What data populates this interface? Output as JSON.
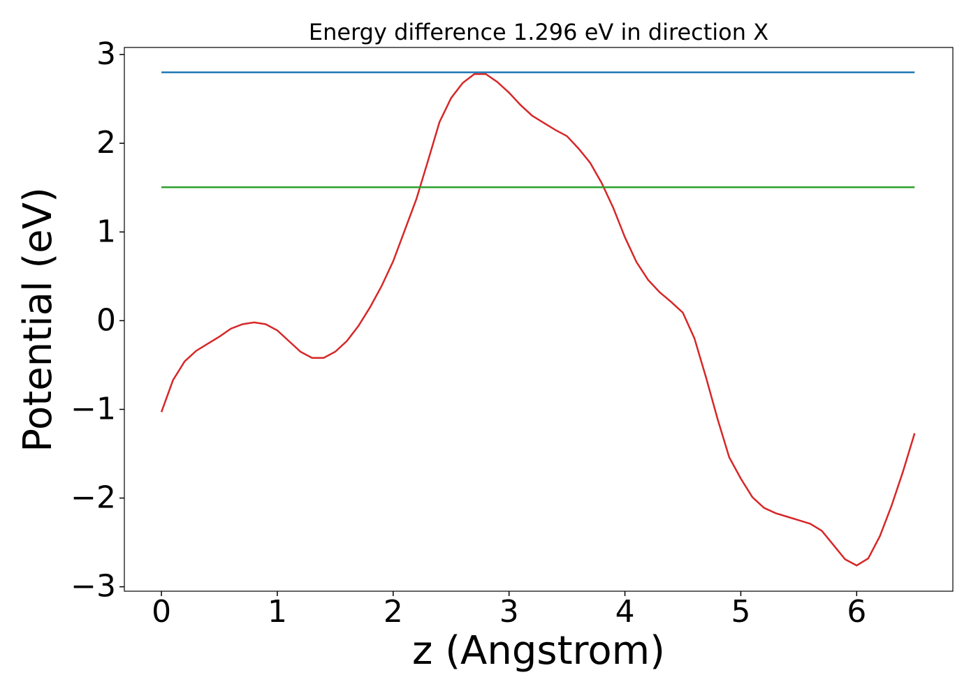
{
  "chart_data": {
    "type": "line",
    "title": "Energy difference 1.296 eV in direction X",
    "xlabel": "z (Angstrom)",
    "ylabel": "Potential (eV)",
    "xlim": [
      -0.32,
      6.83
    ],
    "ylim": [
      -3.05,
      3.08
    ],
    "xticks": [
      0,
      1,
      2,
      3,
      4,
      5,
      6
    ],
    "yticks": [
      {
        "value": -3,
        "label": "−3"
      },
      {
        "value": -2,
        "label": "−2"
      },
      {
        "value": -1,
        "label": "−1"
      },
      0,
      1,
      2,
      3
    ],
    "grid": false,
    "series": [
      {
        "color": "#d62728",
        "x": [
          0,
          0.1,
          0.2,
          0.3,
          0.4,
          0.5,
          0.6,
          0.7,
          0.8,
          0.9,
          1.0,
          1.1,
          1.2,
          1.3,
          1.4,
          1.5,
          1.6,
          1.7,
          1.8,
          1.9,
          2.0,
          2.1,
          2.2,
          2.3,
          2.4,
          2.5,
          2.6,
          2.7,
          2.8,
          2.9,
          3.0,
          3.1,
          3.2,
          3.3,
          3.4,
          3.5,
          3.6,
          3.7,
          3.8,
          3.9,
          4.0,
          4.1,
          4.2,
          4.3,
          4.4,
          4.5,
          4.6,
          4.7,
          4.8,
          4.9,
          5.0,
          5.1,
          5.2,
          5.3,
          5.4,
          5.5,
          5.6,
          5.7,
          5.8,
          5.9,
          6.0,
          6.1,
          6.2,
          6.3,
          6.4,
          6.5
        ],
        "values": [
          -1.03,
          -0.67,
          -0.46,
          -0.34,
          -0.26,
          -0.18,
          -0.09,
          -0.04,
          -0.02,
          -0.04,
          -0.11,
          -0.23,
          -0.35,
          -0.42,
          -0.42,
          -0.35,
          -0.23,
          -0.06,
          0.15,
          0.39,
          0.67,
          1.02,
          1.37,
          1.8,
          2.24,
          2.51,
          2.68,
          2.78,
          2.78,
          2.69,
          2.57,
          2.43,
          2.31,
          2.23,
          2.15,
          2.08,
          1.94,
          1.78,
          1.55,
          1.27,
          0.94,
          0.66,
          0.46,
          0.32,
          0.21,
          0.09,
          -0.2,
          -0.64,
          -1.11,
          -1.54,
          -1.78,
          -1.99,
          -2.11,
          -2.17,
          -2.21,
          -2.25,
          -2.29,
          -2.37,
          -2.53,
          -2.69,
          -2.76,
          -2.68,
          -2.43,
          -2.09,
          -1.7,
          -1.27
        ]
      },
      {
        "color": "#1f77b4",
        "x": [
          0,
          6.5
        ],
        "values": [
          2.8,
          2.8
        ]
      },
      {
        "color": "#2ca02c",
        "x": [
          0,
          6.5
        ],
        "values": [
          1.504,
          1.504
        ]
      }
    ]
  }
}
